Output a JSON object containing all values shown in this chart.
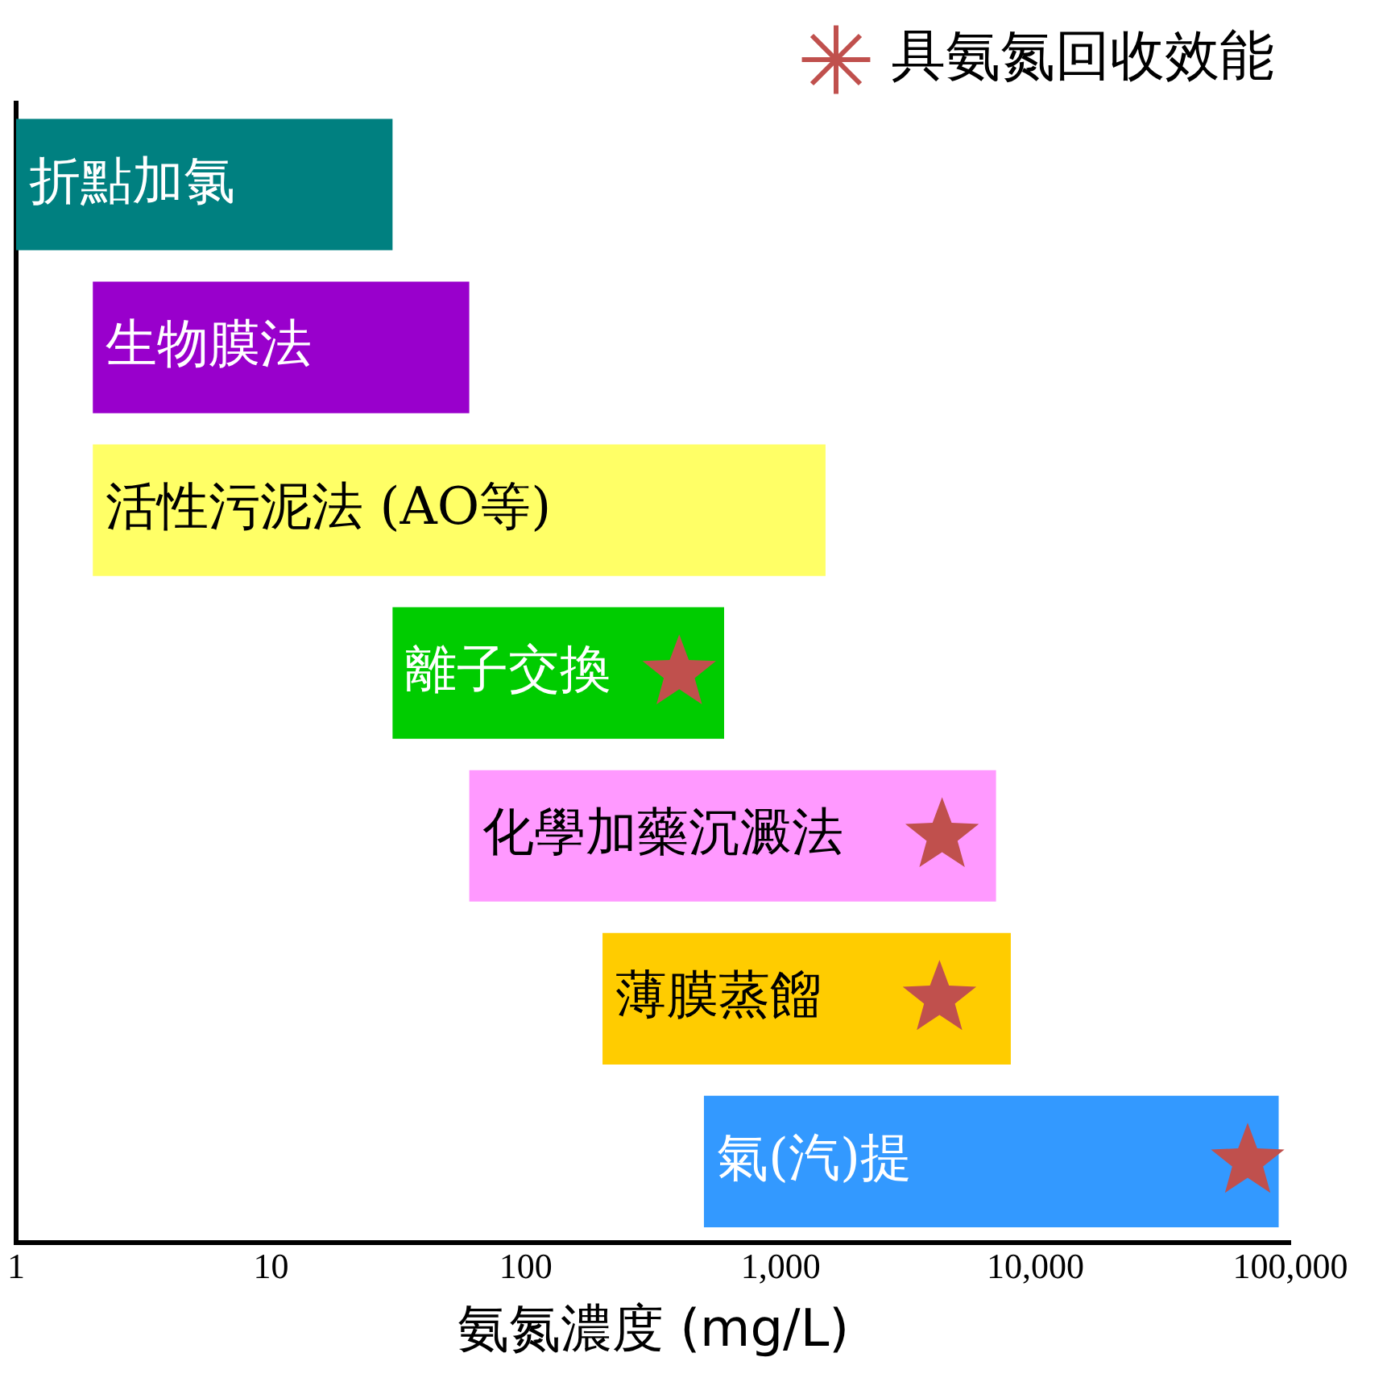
{
  "chart_data": {
    "type": "bar",
    "orientation": "horizontal",
    "xlabel": "氨氮濃度 (mg/L)",
    "log": "x",
    "xlim": [
      1,
      100000
    ],
    "xticks": [
      1,
      10,
      100,
      {
        "value": 1000,
        "label": "1,000"
      },
      {
        "value": 10000,
        "label": "10,000"
      },
      {
        "value": 100000,
        "label": "100,000"
      }
    ],
    "tick_labels": "x",
    "grid": false,
    "legend": "top right",
    "categories": [
      "折點加氯",
      "生物膜法",
      "活性污泥法 (AO等)",
      "離子交換",
      "化學加藥沉澱法",
      "薄膜蒸餾",
      "氣(汽)提"
    ],
    "series": [
      {
        "base": [
          1,
          2,
          2,
          30,
          60,
          200,
          500
        ],
        "values": [
          29,
          58,
          1498,
          570,
          6940,
          7800,
          89500
        ],
        "colors": [
          "#008080",
          "#9900cc",
          "#ffff66",
          "#00cc00",
          "#ff99ff",
          "#ffcc00",
          "#3399ff"
        ]
      },
      {
        "type": "scatter",
        "name": "具氨氮回收效能",
        "color": "#c0504d",
        "marker": "star",
        "values": [
          null,
          null,
          null,
          400,
          4300,
          4200,
          68000
        ]
      }
    ]
  }
}
